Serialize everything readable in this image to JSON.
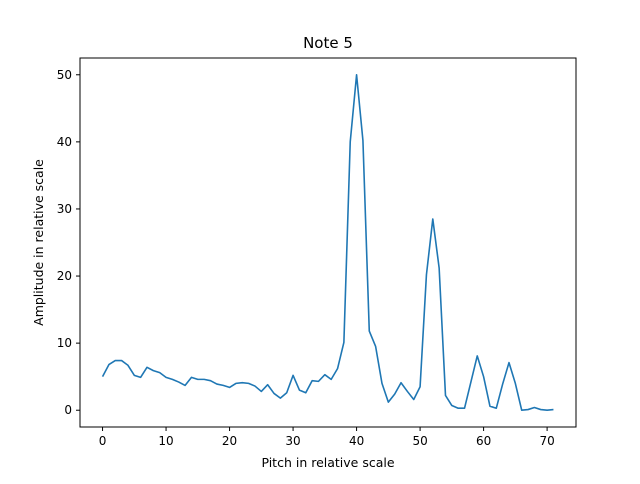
{
  "chart_data": {
    "type": "line",
    "title": "Note 5",
    "xlabel": "Pitch in relative scale",
    "ylabel": "Amplitude in relative scale",
    "xlim": [
      -3.55,
      74.55
    ],
    "ylim": [
      -2.5,
      52.5
    ],
    "xticks": [
      0,
      10,
      20,
      30,
      40,
      50,
      60,
      70
    ],
    "yticks": [
      0,
      10,
      20,
      30,
      40,
      50
    ],
    "grid": false,
    "line_color": "#1f77b4",
    "series": [
      {
        "x": [
          0,
          1,
          2,
          3,
          4,
          5,
          6,
          7,
          8,
          9,
          10,
          11,
          12,
          13,
          14,
          15,
          16,
          17,
          18,
          19,
          20,
          21,
          22,
          23,
          24,
          25,
          26,
          27,
          28,
          29,
          30,
          31,
          32,
          33,
          34,
          35,
          36,
          37,
          38,
          39,
          40,
          41,
          42,
          43,
          44,
          45,
          46,
          47,
          48,
          49,
          50,
          51,
          52,
          53,
          54,
          55,
          56,
          57,
          58,
          59,
          60,
          61,
          62,
          63,
          64,
          65,
          66,
          67,
          68,
          69,
          70,
          71
        ],
        "values": [
          5.0,
          6.8,
          7.4,
          7.4,
          6.7,
          5.2,
          4.9,
          6.4,
          5.9,
          5.6,
          4.9,
          4.6,
          4.2,
          3.7,
          4.9,
          4.6,
          4.6,
          4.4,
          3.9,
          3.7,
          3.4,
          4.0,
          4.1,
          4.0,
          3.6,
          2.8,
          3.8,
          2.5,
          1.8,
          2.6,
          5.2,
          3.0,
          2.6,
          4.4,
          4.3,
          5.3,
          4.6,
          6.2,
          10.1,
          40.0,
          50.0,
          40.2,
          11.8,
          9.5,
          4.0,
          1.2,
          2.4,
          4.1,
          2.8,
          1.6,
          3.5,
          20.2,
          28.5,
          21.2,
          2.2,
          0.7,
          0.3,
          0.3,
          4.2,
          8.1,
          5.0,
          0.6,
          0.3,
          3.9,
          7.1,
          4.0,
          0.0,
          0.1,
          0.4,
          0.1,
          0.0,
          0.1
        ]
      }
    ]
  }
}
